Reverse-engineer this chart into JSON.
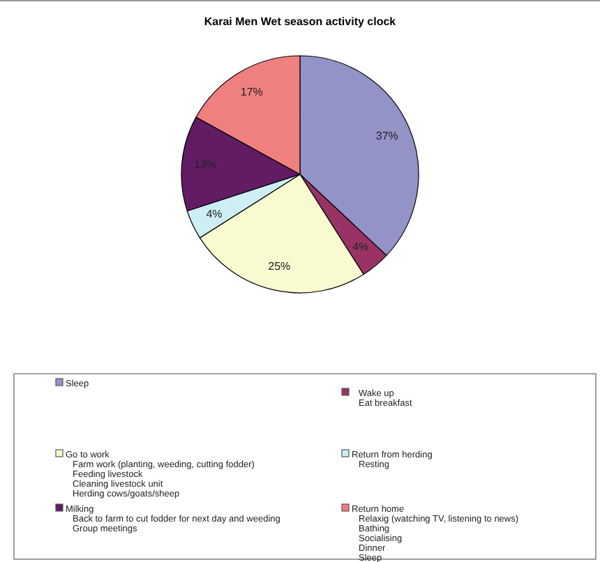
{
  "chart_data": {
    "type": "pie",
    "title": "Karai Men Wet season activity  clock",
    "categories": [
      "Sleep",
      "\nWake up\nEat breakfast",
      "Go to work\nFarm work (planting, weeding, cutting fodder)\nFeeding livestock\nCleaning livestock unit\nHerding cows/goats/sheep",
      "Return from herding\nResting",
      "Milking\nBack to farm to cut fodder for next day and weeding\nGroup meetings",
      "Return home\nRelaxig (watching TV, listening to news)\nBathing\nSocialising\nDinner\nSleep"
    ],
    "values": [
      37,
      4,
      25,
      4,
      13,
      17
    ],
    "colors": [
      "#9393c8",
      "#993366",
      "#fafad0",
      "#cdeef5",
      "#611c63",
      "#f08080"
    ],
    "value_labels": [
      "37%",
      "4%",
      "25%",
      "4%",
      "13%",
      "17%"
    ],
    "legend": "bottom"
  }
}
